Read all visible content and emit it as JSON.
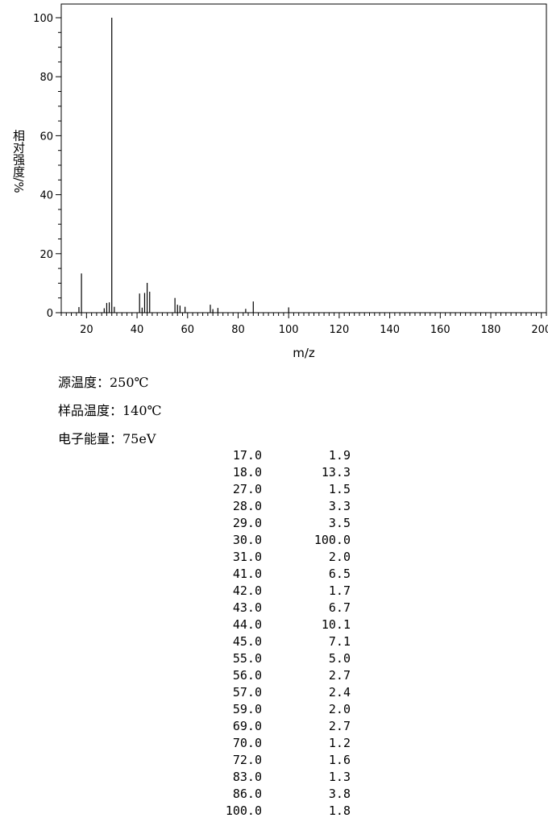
{
  "chart_data": {
    "type": "bar",
    "xlabel": "m/z",
    "ylabel": "相对强度/%",
    "xlim": [
      10,
      202
    ],
    "ylim": [
      0,
      100
    ],
    "xticks": [
      20,
      40,
      60,
      80,
      100,
      120,
      140,
      160,
      180,
      200
    ],
    "yticks": [
      0,
      20,
      40,
      60,
      80,
      100
    ],
    "x": [
      17,
      18,
      27,
      28,
      29,
      30,
      31,
      41,
      42,
      43,
      44,
      45,
      55,
      56,
      57,
      59,
      69,
      70,
      72,
      83,
      86,
      100
    ],
    "values": [
      1.9,
      13.3,
      1.5,
      3.3,
      3.5,
      100.0,
      2.0,
      6.5,
      1.7,
      6.7,
      10.1,
      7.1,
      5.0,
      2.7,
      2.4,
      2.0,
      2.7,
      1.2,
      1.6,
      1.3,
      3.8,
      1.8
    ],
    "grid": false
  },
  "conditions": {
    "source_temp": "源温度：250℃",
    "sample_temp": "样品温度：140℃",
    "electron_energy": "电子能量：75eV"
  },
  "peak_list": [
    {
      "mz": "17.0",
      "intensity": "1.9"
    },
    {
      "mz": "18.0",
      "intensity": "13.3"
    },
    {
      "mz": "27.0",
      "intensity": "1.5"
    },
    {
      "mz": "28.0",
      "intensity": "3.3"
    },
    {
      "mz": "29.0",
      "intensity": "3.5"
    },
    {
      "mz": "30.0",
      "intensity": "100.0"
    },
    {
      "mz": "31.0",
      "intensity": "2.0"
    },
    {
      "mz": "41.0",
      "intensity": "6.5"
    },
    {
      "mz": "42.0",
      "intensity": "1.7"
    },
    {
      "mz": "43.0",
      "intensity": "6.7"
    },
    {
      "mz": "44.0",
      "intensity": "10.1"
    },
    {
      "mz": "45.0",
      "intensity": "7.1"
    },
    {
      "mz": "55.0",
      "intensity": "5.0"
    },
    {
      "mz": "56.0",
      "intensity": "2.7"
    },
    {
      "mz": "57.0",
      "intensity": "2.4"
    },
    {
      "mz": "59.0",
      "intensity": "2.0"
    },
    {
      "mz": "69.0",
      "intensity": "2.7"
    },
    {
      "mz": "70.0",
      "intensity": "1.2"
    },
    {
      "mz": "72.0",
      "intensity": "1.6"
    },
    {
      "mz": "83.0",
      "intensity": "1.3"
    },
    {
      "mz": "86.0",
      "intensity": "3.8"
    },
    {
      "mz": "100.0",
      "intensity": "1.8"
    }
  ]
}
